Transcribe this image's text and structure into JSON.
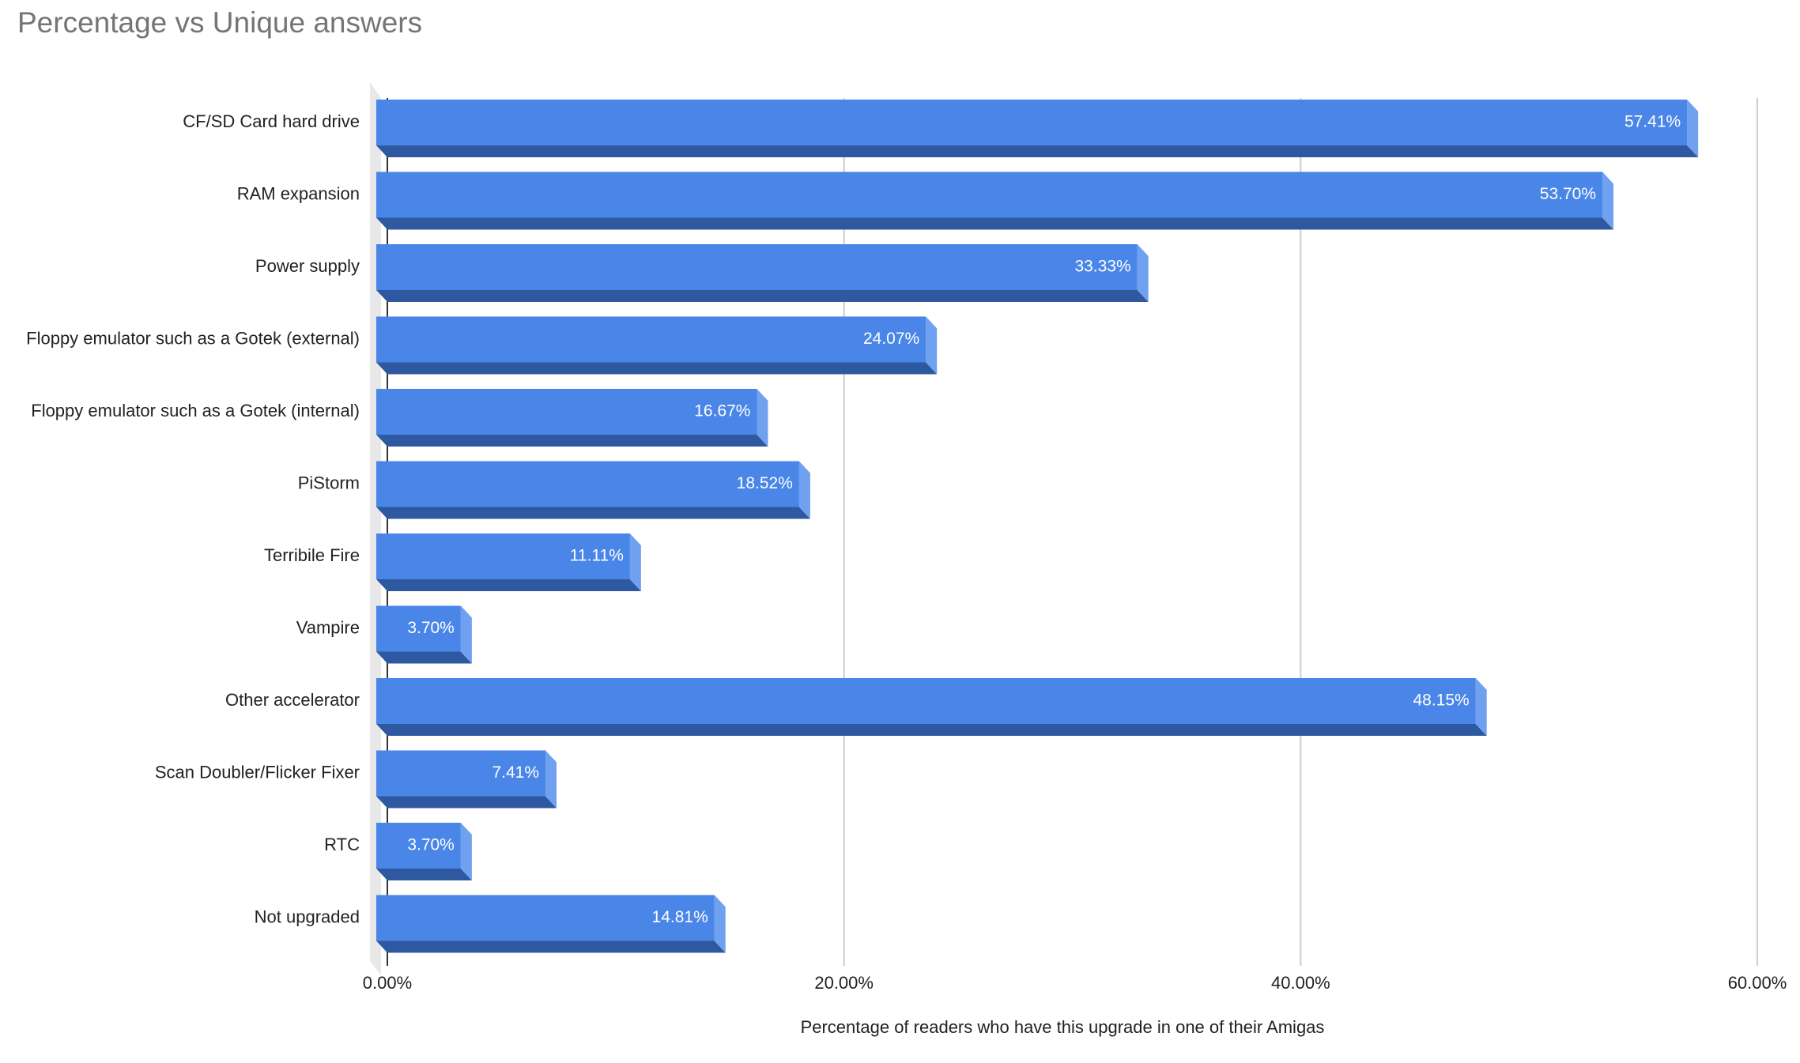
{
  "chart_data": {
    "type": "bar",
    "orientation": "horizontal",
    "style": "3d",
    "title": "Percentage vs Unique answers",
    "xlabel": "Percentage of readers who have this upgrade in one of their Amigas",
    "ylabel": "",
    "categories": [
      "CF/SD Card hard drive",
      "RAM expansion",
      "Power supply",
      "Floppy emulator such as a Gotek (external)",
      "Floppy emulator such as a Gotek (internal)",
      "PiStorm",
      "Terribile Fire",
      "Vampire",
      "Other accelerator",
      "Scan Doubler/Flicker Fixer",
      "RTC",
      "Not upgraded"
    ],
    "values": [
      57.41,
      53.7,
      33.33,
      24.07,
      16.67,
      18.52,
      11.11,
      3.7,
      48.15,
      7.41,
      3.7,
      14.81
    ],
    "value_labels": [
      "57.41%",
      "53.70%",
      "33.33%",
      "24.07%",
      "16.67%",
      "18.52%",
      "11.11%",
      "3.70%",
      "48.15%",
      "7.41%",
      "3.70%",
      "14.81%"
    ],
    "xlim": [
      0,
      60
    ],
    "xticks": [
      0,
      20,
      40,
      60
    ],
    "xtick_labels": [
      "0.00%",
      "20.00%",
      "40.00%",
      "60.00%"
    ],
    "grid": true,
    "legend": "none",
    "colors": {
      "bar_face": "#4a86e8",
      "bar_bottom": "#2e58a0",
      "bar_side": "#6fa1f0",
      "gridline": "#cccccc",
      "axis": "#333333",
      "title": "#757575",
      "floor": "#e8e8e8"
    }
  }
}
